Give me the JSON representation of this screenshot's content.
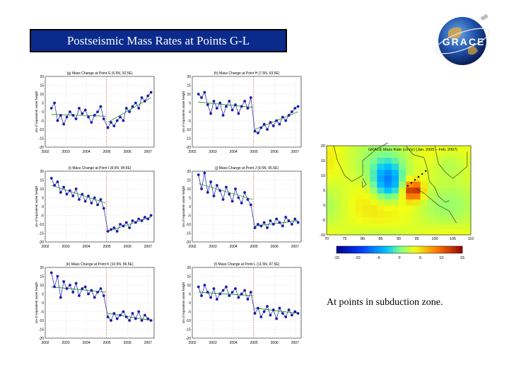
{
  "title": "Postseismic Mass Rates at Points G-L",
  "logo": {
    "text": "GRACE"
  },
  "caption": "At points in subduction zone.",
  "colors": {
    "title_bg": "#0a2a8c",
    "points": "#1a1aa8",
    "trend": "#2a9a2a",
    "quake_line": "#d06060"
  },
  "chart_data": [
    {
      "type": "scatter",
      "id": "g",
      "title": "(g) Mass Change at Point G (6.5N, 92.5E)",
      "ylabel": "cm of equivalent water height",
      "xticks": [
        "2002",
        "2003",
        "2004",
        "2005",
        "2006",
        "2007"
      ],
      "yticks": [
        "20",
        "15",
        "10",
        "5",
        "0",
        "-5",
        "-10",
        "-15",
        "-20"
      ],
      "xlim": [
        2002,
        2007.3
      ],
      "ylim": [
        -20,
        20
      ],
      "quake": 2004.98,
      "x": [
        2002.3,
        2002.45,
        2002.6,
        2002.75,
        2002.9,
        2003.05,
        2003.2,
        2003.35,
        2003.5,
        2003.65,
        2003.8,
        2003.95,
        2004.1,
        2004.25,
        2004.4,
        2004.55,
        2004.7,
        2004.85,
        2005.05,
        2005.2,
        2005.35,
        2005.5,
        2005.65,
        2005.8,
        2005.95,
        2006.1,
        2006.25,
        2006.4,
        2006.55,
        2006.7,
        2006.85,
        2007.0,
        2007.15
      ],
      "y": [
        2,
        5,
        -5,
        -2,
        -7,
        -3,
        0,
        -2,
        -4,
        2,
        -1,
        1,
        -3,
        -6,
        -2,
        0,
        3,
        -4,
        -9,
        -6,
        -8,
        -5,
        -3,
        -5,
        2,
        0,
        3,
        5,
        2,
        8,
        6,
        9,
        11
      ],
      "trend_pre": [
        [
          2002.3,
          -1.5
        ],
        [
          2004.95,
          -2.5
        ]
      ],
      "trend_post": [
        [
          2005.05,
          -6
        ],
        [
          2007.15,
          8
        ]
      ]
    },
    {
      "type": "scatter",
      "id": "h",
      "title": "(h) Mass Change at Point H (7.5N, 93.5E)",
      "ylabel": "cm of equivalent water height",
      "xticks": [
        "2002",
        "2003",
        "2004",
        "2005",
        "2006",
        "2007"
      ],
      "yticks": [
        "20",
        "15",
        "10",
        "5",
        "0",
        "-5",
        "-10",
        "-15",
        "-20"
      ],
      "xlim": [
        2002,
        2007.3
      ],
      "ylim": [
        -20,
        20
      ],
      "quake": 2004.98,
      "x": [
        2002.3,
        2002.45,
        2002.6,
        2002.75,
        2002.9,
        2003.05,
        2003.2,
        2003.35,
        2003.5,
        2003.65,
        2003.8,
        2003.95,
        2004.1,
        2004.25,
        2004.4,
        2004.55,
        2004.7,
        2004.85,
        2005.05,
        2005.2,
        2005.35,
        2005.5,
        2005.65,
        2005.8,
        2005.95,
        2006.1,
        2006.25,
        2006.4,
        2006.55,
        2006.7,
        2006.85,
        2007.0,
        2007.15
      ],
      "y": [
        10,
        8,
        11,
        4,
        -1,
        6,
        2,
        5,
        -2,
        3,
        6,
        1,
        4,
        -1,
        3,
        6,
        2,
        8,
        -11,
        -12,
        -9,
        -7,
        -10,
        -6,
        -8,
        -5,
        -7,
        -3,
        -5,
        -2,
        0,
        2,
        3
      ],
      "trend_pre": [
        [
          2002.3,
          5.5
        ],
        [
          2004.95,
          2.5
        ]
      ],
      "trend_post": [
        [
          2005.05,
          -10
        ],
        [
          2007.15,
          0
        ]
      ]
    },
    {
      "type": "scatter",
      "id": "i",
      "title": "(i) Mass Change at Point I (8.5N, 94.5E)",
      "ylabel": "cm of equivalent water height",
      "xticks": [
        "2002",
        "2003",
        "2004",
        "2005",
        "2006",
        "2007"
      ],
      "yticks": [
        "20",
        "15",
        "10",
        "5",
        "0",
        "-5",
        "-10",
        "-15",
        "-20"
      ],
      "xlim": [
        2002,
        2007.3
      ],
      "ylim": [
        -20,
        20
      ],
      "quake": 2004.98,
      "x": [
        2002.3,
        2002.45,
        2002.6,
        2002.75,
        2002.9,
        2003.05,
        2003.2,
        2003.35,
        2003.5,
        2003.65,
        2003.8,
        2003.95,
        2004.1,
        2004.25,
        2004.4,
        2004.55,
        2004.7,
        2004.85,
        2005.05,
        2005.2,
        2005.35,
        2005.5,
        2005.65,
        2005.8,
        2005.95,
        2006.1,
        2006.25,
        2006.4,
        2006.55,
        2006.7,
        2006.85,
        2007.0,
        2007.15
      ],
      "y": [
        16,
        12,
        14,
        8,
        11,
        7,
        9,
        6,
        10,
        4,
        7,
        3,
        6,
        2,
        5,
        1,
        4,
        -1,
        -14,
        -13,
        -12,
        -14,
        -10,
        -11,
        -9,
        -12,
        -8,
        -9,
        -7,
        -8,
        -6,
        -7,
        -5
      ],
      "trend_pre": [
        [
          2002.3,
          12
        ],
        [
          2004.95,
          2
        ]
      ],
      "trend_post": [
        [
          2005.05,
          -14
        ],
        [
          2007.15,
          -6
        ]
      ]
    },
    {
      "type": "scatter",
      "id": "j",
      "title": "(j) Mass Change at Point J (9.5N, 95.5E)",
      "ylabel": "cm of equivalent water height",
      "xticks": [
        "2002",
        "2003",
        "2004",
        "2005",
        "2006",
        "2007"
      ],
      "yticks": [
        "20",
        "15",
        "10",
        "5",
        "0",
        "-5",
        "-10",
        "-15",
        "-20"
      ],
      "xlim": [
        2002,
        2007.3
      ],
      "ylim": [
        -20,
        20
      ],
      "quake": 2004.98,
      "x": [
        2002.3,
        2002.45,
        2002.6,
        2002.75,
        2002.9,
        2003.05,
        2003.2,
        2003.35,
        2003.5,
        2003.65,
        2003.8,
        2003.95,
        2004.1,
        2004.25,
        2004.4,
        2004.55,
        2004.7,
        2004.85,
        2005.05,
        2005.2,
        2005.35,
        2005.5,
        2005.65,
        2005.8,
        2005.95,
        2006.1,
        2006.25,
        2006.4,
        2006.55,
        2006.7,
        2006.85,
        2007.0,
        2007.15
      ],
      "y": [
        18,
        10,
        19,
        8,
        14,
        6,
        12,
        9,
        4,
        11,
        7,
        3,
        10,
        5,
        2,
        8,
        4,
        1,
        -12,
        -10,
        -11,
        -9,
        -12,
        -8,
        -10,
        -7,
        -9,
        -11,
        -6,
        -8,
        -10,
        -7,
        -9
      ],
      "trend_pre": [
        [
          2002.3,
          13
        ],
        [
          2004.95,
          4
        ]
      ],
      "trend_post": [
        [
          2005.05,
          -11
        ],
        [
          2007.15,
          -8
        ]
      ]
    },
    {
      "type": "scatter",
      "id": "k",
      "title": "(k) Mass Change at Point K (10.5N, 96.5E)",
      "ylabel": "cm of equivalent water height",
      "xticks": [
        "2002",
        "2003",
        "2004",
        "2005",
        "2006",
        "2007"
      ],
      "yticks": [
        "20",
        "15",
        "10",
        "5",
        "0",
        "-5",
        "-10",
        "-15",
        "-20"
      ],
      "xlim": [
        2002,
        2007.3
      ],
      "ylim": [
        -20,
        20
      ],
      "quake": 2004.98,
      "x": [
        2002.3,
        2002.45,
        2002.6,
        2002.75,
        2002.9,
        2003.05,
        2003.2,
        2003.35,
        2003.5,
        2003.65,
        2003.8,
        2003.95,
        2004.1,
        2004.25,
        2004.4,
        2004.55,
        2004.7,
        2004.85,
        2005.05,
        2005.2,
        2005.35,
        2005.5,
        2005.65,
        2005.8,
        2005.95,
        2006.1,
        2006.25,
        2006.4,
        2006.55,
        2006.7,
        2006.85,
        2007.0,
        2007.15
      ],
      "y": [
        17,
        9,
        15,
        3,
        12,
        8,
        10,
        6,
        11,
        4,
        8,
        9,
        5,
        7,
        3,
        6,
        8,
        4,
        -8,
        -10,
        -6,
        -9,
        -7,
        -5,
        -8,
        -10,
        -6,
        -9,
        -5,
        -10,
        -7,
        -9,
        -10
      ],
      "trend_pre": [
        [
          2002.3,
          9
        ],
        [
          2004.95,
          6
        ]
      ],
      "trend_post": [
        [
          2005.05,
          -6
        ],
        [
          2007.15,
          -10
        ]
      ]
    },
    {
      "type": "scatter",
      "id": "l",
      "title": "(l) Mass Change at Point L (11.5N, 97.5E)",
      "ylabel": "cm of equivalent water height",
      "xticks": [
        "2002",
        "2003",
        "2004",
        "2005",
        "2006",
        "2007"
      ],
      "yticks": [
        "20",
        "15",
        "10",
        "5",
        "0",
        "-5",
        "-10",
        "-15",
        "-20"
      ],
      "xlim": [
        2002,
        2007.3
      ],
      "ylim": [
        -20,
        20
      ],
      "quake": 2004.98,
      "x": [
        2002.3,
        2002.45,
        2002.6,
        2002.75,
        2002.9,
        2003.05,
        2003.2,
        2003.35,
        2003.5,
        2003.65,
        2003.8,
        2003.95,
        2004.1,
        2004.25,
        2004.4,
        2004.55,
        2004.7,
        2004.85,
        2005.05,
        2005.2,
        2005.35,
        2005.5,
        2005.65,
        2005.8,
        2005.95,
        2006.1,
        2006.25,
        2006.4,
        2006.55,
        2006.7,
        2006.85,
        2007.0,
        2007.15
      ],
      "y": [
        9,
        4,
        10,
        6,
        3,
        8,
        2,
        5,
        7,
        9,
        4,
        6,
        8,
        3,
        5,
        7,
        2,
        6,
        -6,
        -3,
        -8,
        -5,
        -2,
        -7,
        -4,
        -9,
        -3,
        -6,
        -8,
        -4,
        -7,
        -5,
        -6
      ],
      "trend_pre": [
        [
          2002.3,
          6
        ],
        [
          2004.95,
          4
        ]
      ],
      "trend_post": [
        [
          2005.05,
          -3
        ],
        [
          2007.15,
          -6
        ]
      ]
    },
    {
      "type": "heatmap",
      "id": "map",
      "title": "GRACE Mass Rate (cm/yr) (Jan. 2005 – Feb. 2007)",
      "xticks": [
        "70",
        "75",
        "80",
        "85",
        "90",
        "95",
        "100",
        "105",
        "110"
      ],
      "yticks": [
        "20",
        "15",
        "10",
        "5",
        "0",
        "-5",
        "-10"
      ],
      "colorbar_ticks": [
        "-15",
        "-10",
        "-5",
        "0",
        "5",
        "10",
        "15"
      ],
      "clim": [
        -15,
        15
      ]
    }
  ]
}
